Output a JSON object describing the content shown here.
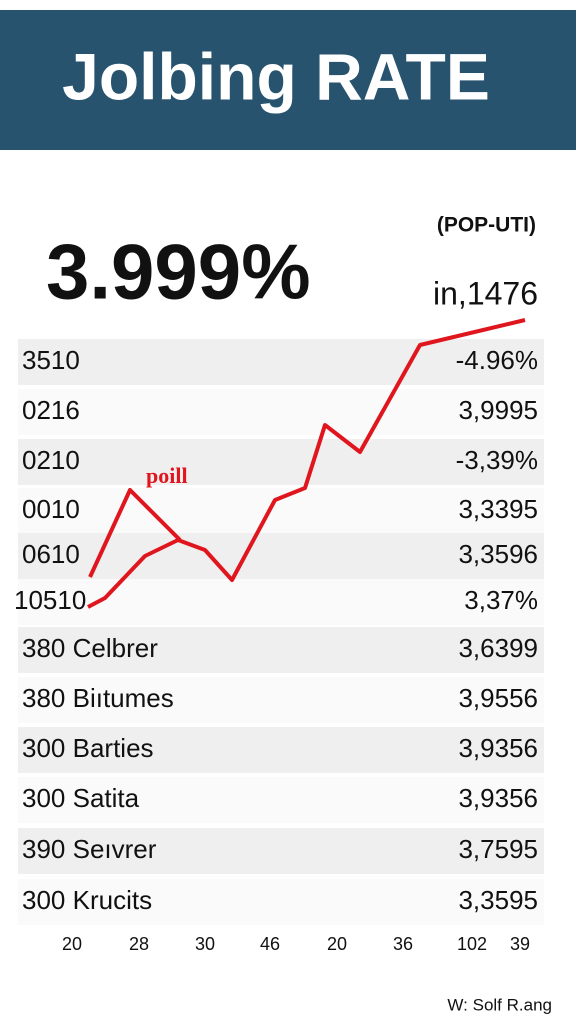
{
  "header": {
    "title": "Jolbing RATE"
  },
  "headline": {
    "value": "3.999%",
    "tag": "(POP-UTI)",
    "side": "in,1476"
  },
  "annotation": "poill",
  "table": {
    "rows": [
      [
        "3510",
        "-4.96%"
      ],
      [
        "0216",
        "3,9995"
      ],
      [
        "0210",
        "-3,39%"
      ],
      [
        "0010",
        "3,3395"
      ],
      [
        "0610",
        "3,3596"
      ],
      [
        "10510",
        "3,37%"
      ],
      [
        "380 Celbrer",
        "3,6399"
      ],
      [
        "380 Biıtumes",
        "3,9556"
      ],
      [
        "300 Barties",
        "3,9356"
      ],
      [
        "300 Satita",
        "3,9356"
      ],
      [
        "390 Seıvrer",
        "3,7595"
      ],
      [
        "300 Krucits",
        "3,3595"
      ]
    ]
  },
  "x_labels": [
    "20",
    "28",
    "30",
    "46",
    "20",
    "36",
    "102",
    "39"
  ],
  "footer": "W: Solf R.ang"
}
